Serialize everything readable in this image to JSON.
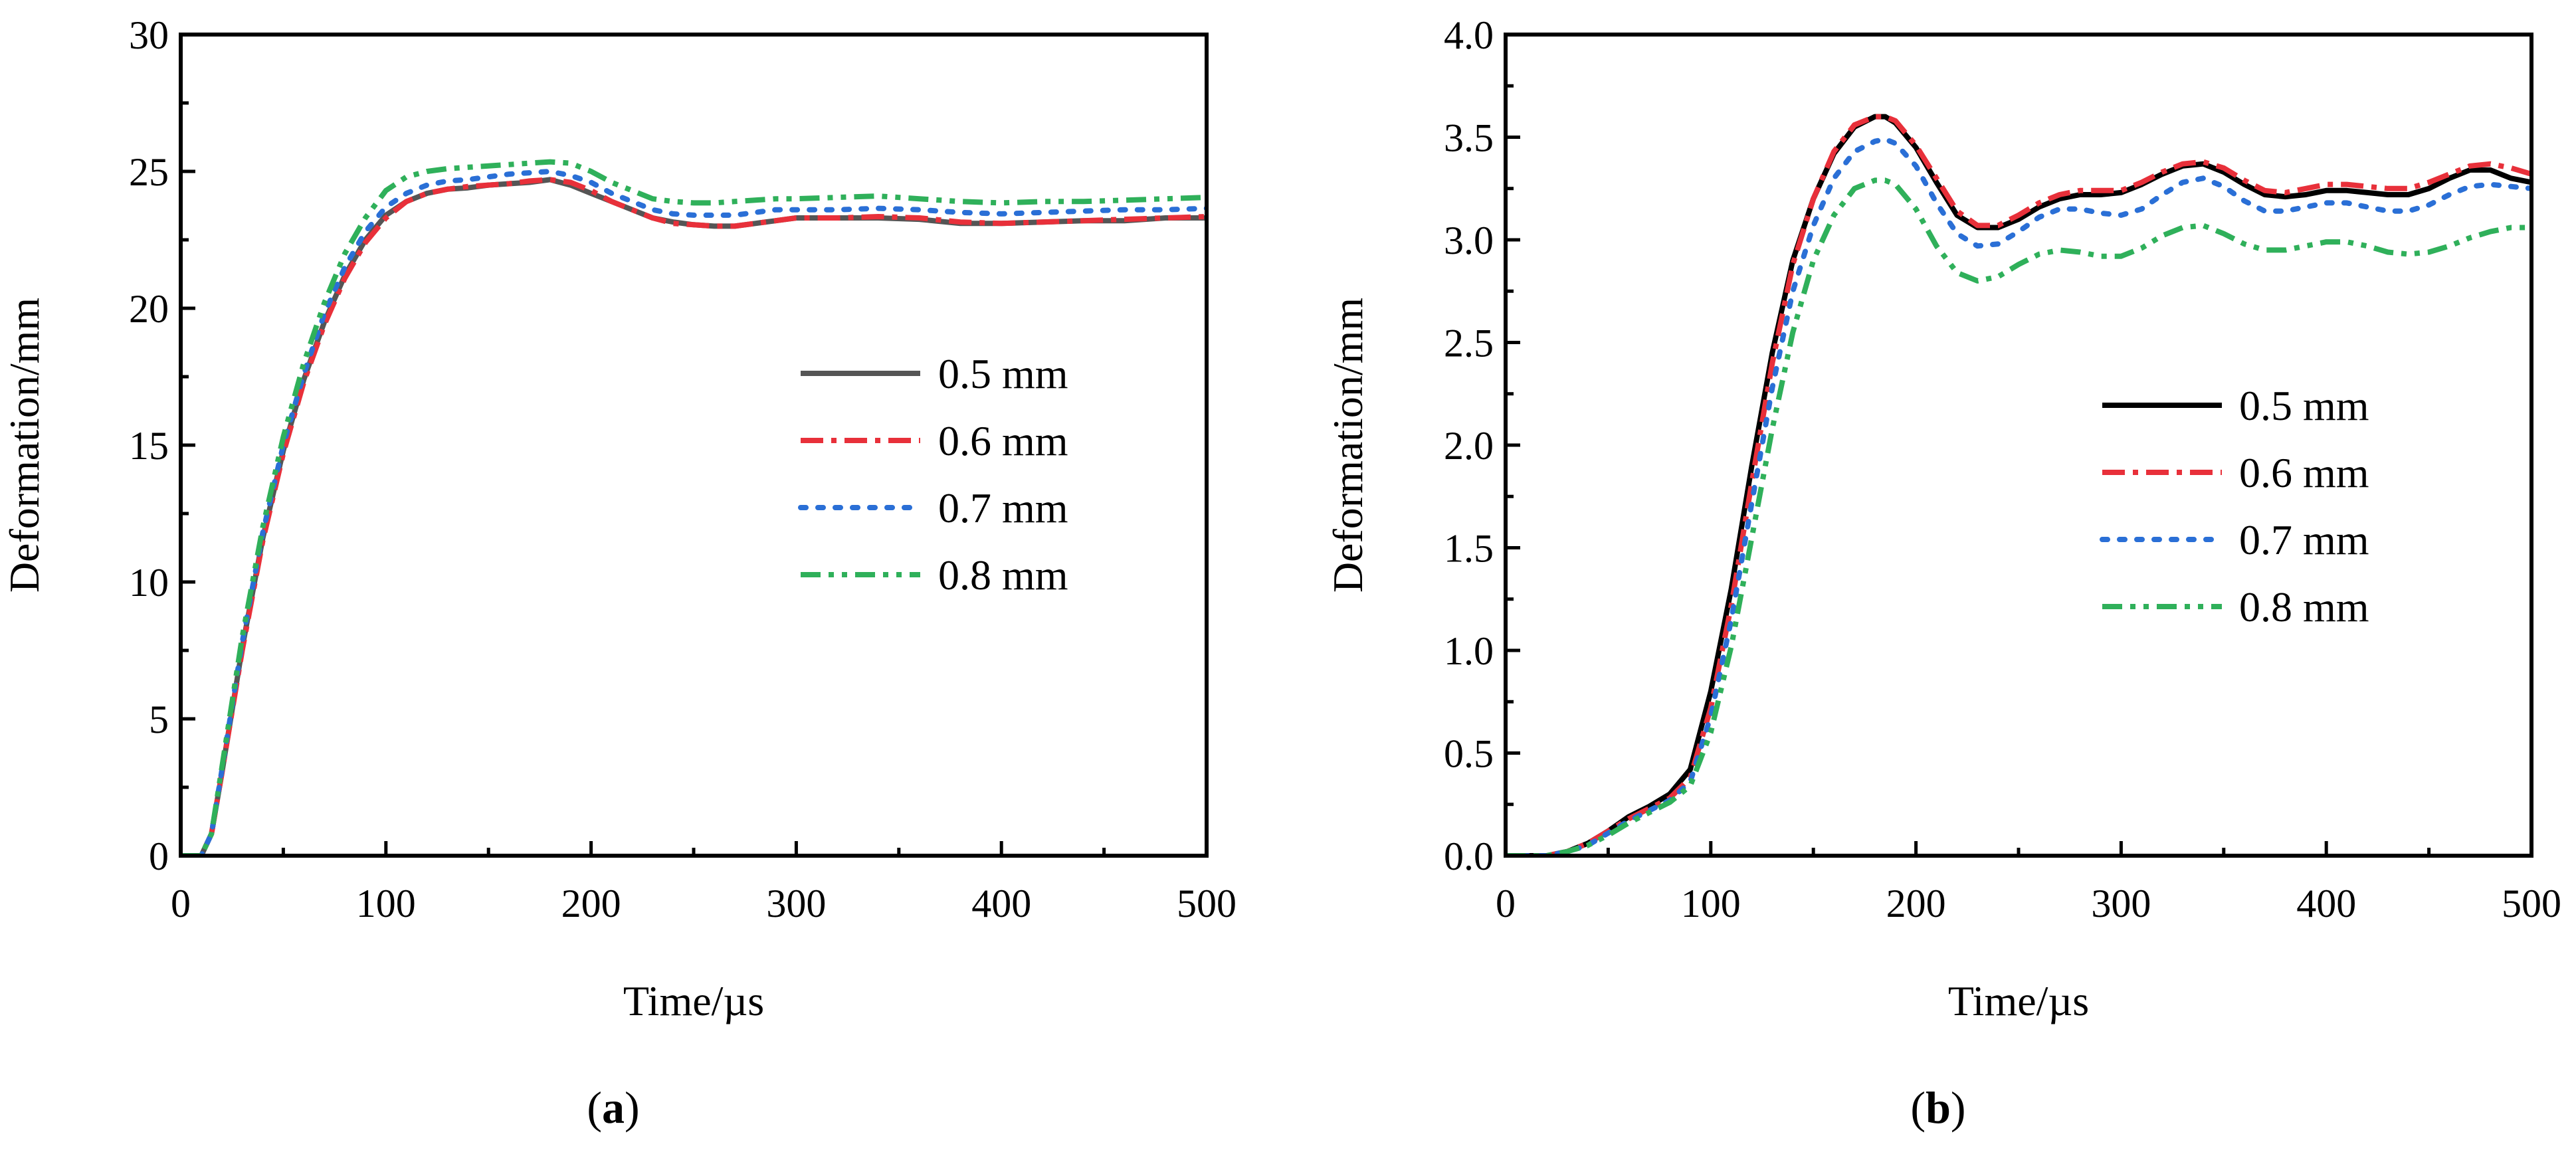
{
  "chart_data": [
    {
      "id": "a",
      "type": "line",
      "caption_letter": "a",
      "xlabel": "Time/µs",
      "ylabel": "Deformation/mm",
      "xlim": [
        0,
        500
      ],
      "ylim": [
        0,
        30
      ],
      "xticks": [
        "0",
        "100",
        "200",
        "300",
        "400",
        "500"
      ],
      "xtick_values": [
        0,
        100,
        200,
        300,
        400,
        500
      ],
      "yticks": [
        "0",
        "5",
        "10",
        "15",
        "20",
        "25",
        "30"
      ],
      "ytick_values": [
        0,
        5,
        10,
        15,
        20,
        25,
        30
      ],
      "grid": false,
      "legend_position": "center-right",
      "series": [
        {
          "name": "0.5 mm",
          "color": "#555555",
          "style": "solid",
          "x": [
            0,
            10,
            15,
            20,
            30,
            40,
            50,
            60,
            70,
            80,
            90,
            100,
            110,
            120,
            130,
            140,
            150,
            160,
            170,
            180,
            190,
            200,
            210,
            220,
            230,
            240,
            250,
            260,
            270,
            280,
            290,
            300,
            320,
            340,
            360,
            380,
            400,
            420,
            440,
            460,
            480,
            500
          ],
          "y": [
            0,
            0,
            0.8,
            3,
            7.6,
            11.6,
            14.8,
            17.4,
            19.5,
            21.2,
            22.5,
            23.4,
            23.9,
            24.2,
            24.35,
            24.4,
            24.5,
            24.55,
            24.6,
            24.7,
            24.5,
            24.2,
            23.9,
            23.6,
            23.3,
            23.15,
            23.05,
            23.0,
            23.0,
            23.1,
            23.2,
            23.3,
            23.3,
            23.3,
            23.25,
            23.1,
            23.1,
            23.15,
            23.2,
            23.2,
            23.3,
            23.3
          ]
        },
        {
          "name": "0.6 mm",
          "color": "#e8303a",
          "style": "dashdot",
          "x": [
            0,
            10,
            15,
            20,
            30,
            40,
            50,
            60,
            70,
            80,
            90,
            100,
            110,
            120,
            130,
            140,
            150,
            160,
            170,
            180,
            190,
            200,
            210,
            220,
            230,
            240,
            250,
            260,
            270,
            280,
            290,
            300,
            320,
            340,
            360,
            380,
            400,
            420,
            440,
            460,
            480,
            500
          ],
          "y": [
            0,
            0,
            0.8,
            3,
            7.5,
            11.5,
            14.7,
            17.3,
            19.4,
            21.1,
            22.4,
            23.3,
            23.9,
            24.2,
            24.35,
            24.45,
            24.5,
            24.55,
            24.65,
            24.7,
            24.6,
            24.3,
            23.9,
            23.6,
            23.3,
            23.1,
            23.05,
            23.0,
            23.0,
            23.1,
            23.2,
            23.3,
            23.3,
            23.35,
            23.3,
            23.15,
            23.1,
            23.15,
            23.2,
            23.25,
            23.3,
            23.35
          ]
        },
        {
          "name": "0.7 mm",
          "color": "#2a6fd6",
          "style": "dotted",
          "x": [
            0,
            10,
            15,
            20,
            30,
            40,
            50,
            60,
            70,
            80,
            90,
            100,
            110,
            120,
            130,
            140,
            150,
            160,
            170,
            180,
            190,
            200,
            210,
            220,
            230,
            240,
            250,
            260,
            270,
            280,
            290,
            300,
            320,
            340,
            360,
            380,
            400,
            420,
            440,
            460,
            480,
            500
          ],
          "y": [
            0,
            0,
            0.8,
            3.1,
            7.8,
            11.8,
            15.0,
            17.6,
            19.8,
            21.5,
            22.8,
            23.7,
            24.2,
            24.5,
            24.65,
            24.7,
            24.8,
            24.9,
            24.95,
            25.0,
            24.85,
            24.6,
            24.2,
            23.9,
            23.6,
            23.45,
            23.4,
            23.4,
            23.4,
            23.5,
            23.6,
            23.6,
            23.6,
            23.65,
            23.6,
            23.5,
            23.45,
            23.5,
            23.55,
            23.6,
            23.6,
            23.65
          ]
        },
        {
          "name": "0.8 mm",
          "color": "#2fb05a",
          "style": "dashdotdot",
          "x": [
            0,
            10,
            15,
            20,
            30,
            40,
            50,
            60,
            70,
            80,
            90,
            100,
            110,
            120,
            130,
            140,
            150,
            160,
            170,
            180,
            190,
            200,
            210,
            220,
            230,
            240,
            250,
            260,
            270,
            280,
            290,
            300,
            320,
            340,
            360,
            380,
            400,
            420,
            440,
            460,
            480,
            500
          ],
          "y": [
            0,
            0,
            0.8,
            3.2,
            8.0,
            12.0,
            15.3,
            18.0,
            20.2,
            22.0,
            23.3,
            24.3,
            24.8,
            25.0,
            25.1,
            25.15,
            25.2,
            25.25,
            25.3,
            25.35,
            25.3,
            25.0,
            24.6,
            24.3,
            24.0,
            23.9,
            23.85,
            23.85,
            23.9,
            23.95,
            24.0,
            24.0,
            24.05,
            24.1,
            24.0,
            23.9,
            23.85,
            23.9,
            23.9,
            23.95,
            24.0,
            24.05
          ]
        }
      ]
    },
    {
      "id": "b",
      "type": "line",
      "caption_letter": "b",
      "xlabel": "Time/µs",
      "ylabel": "Deformation/mm",
      "xlim": [
        0,
        500
      ],
      "ylim": [
        0,
        4.0
      ],
      "xticks": [
        "0",
        "100",
        "200",
        "300",
        "400",
        "500"
      ],
      "xtick_values": [
        0,
        100,
        200,
        300,
        400,
        500
      ],
      "yticks": [
        "0.0",
        "0.5",
        "1.0",
        "1.5",
        "2.0",
        "2.5",
        "3.0",
        "3.5",
        "4.0"
      ],
      "ytick_values": [
        0,
        0.5,
        1.0,
        1.5,
        2.0,
        2.5,
        3.0,
        3.5,
        4.0
      ],
      "grid": false,
      "legend_position": "center-right",
      "series": [
        {
          "name": "0.5 mm",
          "color": "#000000",
          "style": "solid",
          "x": [
            0,
            20,
            30,
            40,
            50,
            60,
            70,
            80,
            90,
            100,
            110,
            120,
            130,
            140,
            150,
            160,
            170,
            180,
            185,
            190,
            200,
            210,
            220,
            230,
            240,
            250,
            260,
            270,
            280,
            290,
            300,
            310,
            320,
            330,
            340,
            350,
            360,
            370,
            380,
            390,
            400,
            410,
            420,
            430,
            440,
            450,
            460,
            470,
            480,
            490,
            500
          ],
          "y": [
            0,
            0,
            0.02,
            0.06,
            0.12,
            0.19,
            0.24,
            0.3,
            0.42,
            0.8,
            1.3,
            1.9,
            2.45,
            2.9,
            3.2,
            3.42,
            3.55,
            3.6,
            3.6,
            3.57,
            3.45,
            3.28,
            3.12,
            3.06,
            3.06,
            3.1,
            3.16,
            3.2,
            3.22,
            3.22,
            3.23,
            3.27,
            3.32,
            3.36,
            3.37,
            3.33,
            3.27,
            3.22,
            3.21,
            3.22,
            3.24,
            3.24,
            3.23,
            3.22,
            3.22,
            3.25,
            3.3,
            3.34,
            3.34,
            3.3,
            3.28
          ]
        },
        {
          "name": "0.6 mm",
          "color": "#e8303a",
          "style": "dashdot",
          "x": [
            0,
            20,
            30,
            40,
            50,
            60,
            70,
            80,
            90,
            100,
            110,
            120,
            130,
            140,
            150,
            160,
            170,
            180,
            185,
            190,
            200,
            210,
            220,
            230,
            240,
            250,
            260,
            270,
            280,
            290,
            300,
            310,
            320,
            330,
            340,
            350,
            360,
            370,
            380,
            390,
            400,
            410,
            420,
            430,
            440,
            450,
            460,
            470,
            480,
            490,
            500
          ],
          "y": [
            0,
            0,
            0.02,
            0.06,
            0.12,
            0.18,
            0.23,
            0.28,
            0.38,
            0.72,
            1.22,
            1.82,
            2.4,
            2.88,
            3.2,
            3.43,
            3.56,
            3.6,
            3.6,
            3.58,
            3.46,
            3.3,
            3.14,
            3.07,
            3.07,
            3.12,
            3.18,
            3.22,
            3.24,
            3.24,
            3.24,
            3.28,
            3.33,
            3.37,
            3.38,
            3.35,
            3.29,
            3.24,
            3.23,
            3.25,
            3.27,
            3.27,
            3.26,
            3.25,
            3.25,
            3.28,
            3.32,
            3.36,
            3.37,
            3.35,
            3.32
          ]
        },
        {
          "name": "0.7 mm",
          "color": "#2a6fd6",
          "style": "dotted",
          "x": [
            0,
            20,
            30,
            40,
            50,
            60,
            70,
            80,
            90,
            100,
            110,
            120,
            130,
            140,
            150,
            160,
            170,
            180,
            185,
            190,
            200,
            210,
            220,
            230,
            240,
            250,
            260,
            270,
            280,
            290,
            300,
            310,
            320,
            330,
            340,
            350,
            360,
            370,
            380,
            390,
            400,
            410,
            420,
            430,
            440,
            450,
            460,
            470,
            480,
            490,
            500
          ],
          "y": [
            0,
            0,
            0.02,
            0.05,
            0.11,
            0.17,
            0.22,
            0.27,
            0.36,
            0.68,
            1.15,
            1.72,
            2.28,
            2.75,
            3.07,
            3.3,
            3.43,
            3.48,
            3.49,
            3.47,
            3.36,
            3.18,
            3.03,
            2.97,
            2.98,
            3.04,
            3.11,
            3.15,
            3.15,
            3.13,
            3.12,
            3.15,
            3.22,
            3.28,
            3.3,
            3.26,
            3.19,
            3.14,
            3.14,
            3.16,
            3.18,
            3.18,
            3.16,
            3.14,
            3.14,
            3.17,
            3.22,
            3.26,
            3.27,
            3.26,
            3.25
          ]
        },
        {
          "name": "0.8 mm",
          "color": "#2fb05a",
          "style": "dashdotdot",
          "x": [
            0,
            20,
            30,
            40,
            50,
            60,
            70,
            80,
            90,
            100,
            110,
            120,
            130,
            140,
            150,
            160,
            170,
            180,
            185,
            190,
            200,
            210,
            220,
            230,
            240,
            250,
            260,
            270,
            280,
            290,
            300,
            310,
            320,
            330,
            340,
            350,
            360,
            370,
            380,
            390,
            400,
            410,
            420,
            430,
            440,
            450,
            460,
            470,
            480,
            490,
            500
          ],
          "y": [
            0,
            0,
            0.02,
            0.05,
            0.1,
            0.16,
            0.21,
            0.26,
            0.34,
            0.6,
            1.02,
            1.55,
            2.08,
            2.55,
            2.9,
            3.12,
            3.25,
            3.29,
            3.29,
            3.27,
            3.15,
            2.97,
            2.84,
            2.8,
            2.82,
            2.88,
            2.93,
            2.95,
            2.94,
            2.92,
            2.92,
            2.96,
            3.02,
            3.06,
            3.07,
            3.03,
            2.98,
            2.95,
            2.95,
            2.97,
            2.99,
            2.99,
            2.97,
            2.94,
            2.93,
            2.94,
            2.97,
            3.01,
            3.04,
            3.06,
            3.06
          ]
        }
      ]
    }
  ]
}
